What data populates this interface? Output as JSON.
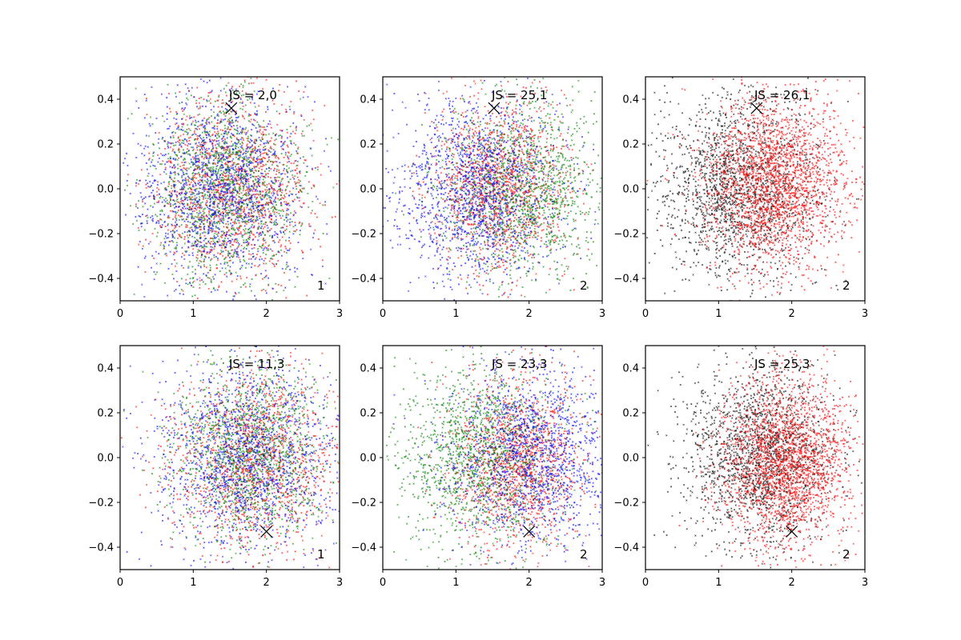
{
  "figure": {
    "rows": 2,
    "cols": 3,
    "background": "#ffffff"
  },
  "styles": {
    "point_colors": {
      "red": "#ff0000",
      "green": "#008000",
      "blue": "#0000ff",
      "black": "#000000"
    },
    "marker": "x-cross",
    "frame_color": "#000000"
  },
  "chart_data": [
    {
      "type": "scatter",
      "panel": 1,
      "annotation_top": "JS = 2,0",
      "annotation_corner": "1",
      "xlim": [
        0,
        3
      ],
      "ylim": [
        -0.5,
        0.5
      ],
      "xticks": [
        "0",
        "1",
        "2",
        "3"
      ],
      "yticks": [
        "-0.4",
        "-0.2",
        "0.0",
        "0.2",
        "0.4"
      ],
      "marker": {
        "x": 1.52,
        "y": 0.36
      },
      "series": [
        {
          "color": "red",
          "count": 1400,
          "center": [
            1.5,
            0.0
          ],
          "spread": [
            0.55,
            0.2
          ]
        },
        {
          "color": "green",
          "count": 1400,
          "center": [
            1.45,
            0.0
          ],
          "spread": [
            0.5,
            0.2
          ]
        },
        {
          "color": "blue",
          "count": 1400,
          "center": [
            1.35,
            0.0
          ],
          "spread": [
            0.6,
            0.22
          ]
        }
      ]
    },
    {
      "type": "scatter",
      "panel": 2,
      "annotation_top": "JS = 25,1",
      "annotation_corner": "2",
      "xlim": [
        0,
        3
      ],
      "ylim": [
        -0.5,
        0.5
      ],
      "xticks": [
        "0",
        "1",
        "2",
        "3"
      ],
      "yticks": [
        "-0.4",
        "-0.2",
        "0.0",
        "0.2",
        "0.4"
      ],
      "marker": {
        "x": 1.52,
        "y": 0.36
      },
      "series": [
        {
          "color": "red",
          "count": 1400,
          "center": [
            1.6,
            0.02
          ],
          "spread": [
            0.45,
            0.19
          ]
        },
        {
          "color": "green",
          "count": 1400,
          "center": [
            1.95,
            0.0
          ],
          "spread": [
            0.55,
            0.2
          ]
        },
        {
          "color": "blue",
          "count": 1400,
          "center": [
            1.25,
            0.0
          ],
          "spread": [
            0.55,
            0.2
          ]
        }
      ]
    },
    {
      "type": "scatter",
      "panel": 3,
      "annotation_top": "JS = 26,1",
      "annotation_corner": "2",
      "xlim": [
        0,
        3
      ],
      "ylim": [
        -0.5,
        0.5
      ],
      "xticks": [
        "0",
        "1",
        "2",
        "3"
      ],
      "yticks": [
        "-0.4",
        "-0.2",
        "0.0",
        "0.2",
        "0.4"
      ],
      "marker": {
        "x": 1.52,
        "y": 0.36
      },
      "series": [
        {
          "color": "black",
          "count": 1800,
          "center": [
            1.25,
            0.0
          ],
          "spread": [
            0.55,
            0.2
          ]
        },
        {
          "color": "red",
          "count": 2200,
          "center": [
            1.75,
            0.02
          ],
          "spread": [
            0.5,
            0.19
          ]
        }
      ]
    },
    {
      "type": "scatter",
      "panel": 4,
      "annotation_top": "JS = 11,3",
      "annotation_corner": "1",
      "xlim": [
        0,
        3
      ],
      "ylim": [
        -0.5,
        0.5
      ],
      "xticks": [
        "0",
        "1",
        "2",
        "3"
      ],
      "yticks": [
        "-0.4",
        "-0.2",
        "0.0",
        "0.2",
        "0.4"
      ],
      "marker": {
        "x": 2.0,
        "y": -0.33
      },
      "series": [
        {
          "color": "red",
          "count": 1400,
          "center": [
            1.85,
            0.0
          ],
          "spread": [
            0.55,
            0.2
          ]
        },
        {
          "color": "green",
          "count": 1400,
          "center": [
            1.75,
            0.02
          ],
          "spread": [
            0.5,
            0.2
          ]
        },
        {
          "color": "blue",
          "count": 1400,
          "center": [
            1.7,
            0.0
          ],
          "spread": [
            0.6,
            0.22
          ]
        }
      ]
    },
    {
      "type": "scatter",
      "panel": 5,
      "annotation_top": "JS = 23,3",
      "annotation_corner": "2",
      "xlim": [
        0,
        3
      ],
      "ylim": [
        -0.5,
        0.5
      ],
      "xticks": [
        "0",
        "1",
        "2",
        "3"
      ],
      "yticks": [
        "-0.4",
        "-0.2",
        "0.0",
        "0.2",
        "0.4"
      ],
      "marker": {
        "x": 2.0,
        "y": -0.33
      },
      "series": [
        {
          "color": "red",
          "count": 1400,
          "center": [
            1.85,
            -0.02
          ],
          "spread": [
            0.45,
            0.19
          ]
        },
        {
          "color": "green",
          "count": 1400,
          "center": [
            1.3,
            0.0
          ],
          "spread": [
            0.55,
            0.2
          ]
        },
        {
          "color": "blue",
          "count": 1400,
          "center": [
            2.05,
            0.0
          ],
          "spread": [
            0.55,
            0.2
          ]
        }
      ]
    },
    {
      "type": "scatter",
      "panel": 6,
      "annotation_top": "JS = 25,3",
      "annotation_corner": "2",
      "xlim": [
        0,
        3
      ],
      "ylim": [
        -0.5,
        0.5
      ],
      "xticks": [
        "0",
        "1",
        "2",
        "3"
      ],
      "yticks": [
        "-0.4",
        "-0.2",
        "0.0",
        "0.2",
        "0.4"
      ],
      "marker": {
        "x": 2.0,
        "y": -0.33
      },
      "series": [
        {
          "color": "black",
          "count": 1800,
          "center": [
            1.55,
            0.02
          ],
          "spread": [
            0.5,
            0.2
          ]
        },
        {
          "color": "red",
          "count": 2200,
          "center": [
            1.95,
            -0.02
          ],
          "spread": [
            0.45,
            0.19
          ]
        }
      ]
    }
  ]
}
